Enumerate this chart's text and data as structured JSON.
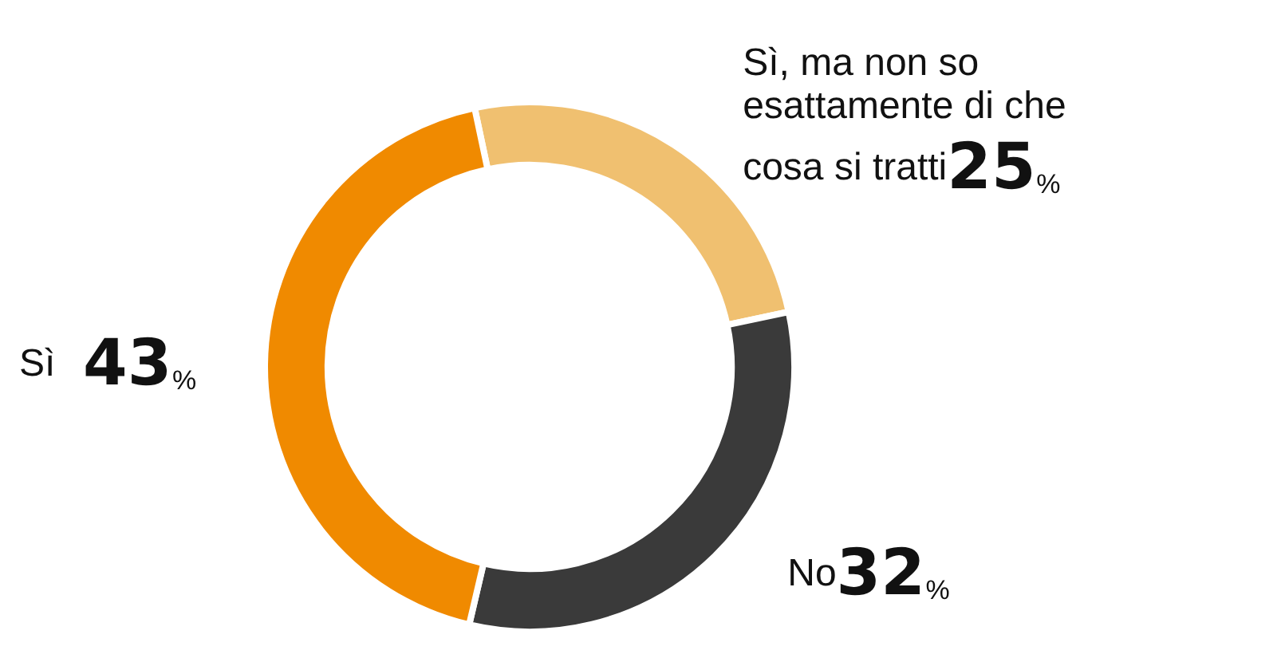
{
  "chart_data": {
    "type": "donut",
    "categories": [
      "Sì, ma non so esattamente di che cosa si tratti",
      "No",
      "Sì"
    ],
    "values": [
      25,
      32,
      43
    ],
    "value_labels": [
      "25%",
      "32%",
      "43%"
    ],
    "colors": [
      "#f0c070",
      "#3a3a3a",
      "#f08a00"
    ],
    "legend": false
  }
}
